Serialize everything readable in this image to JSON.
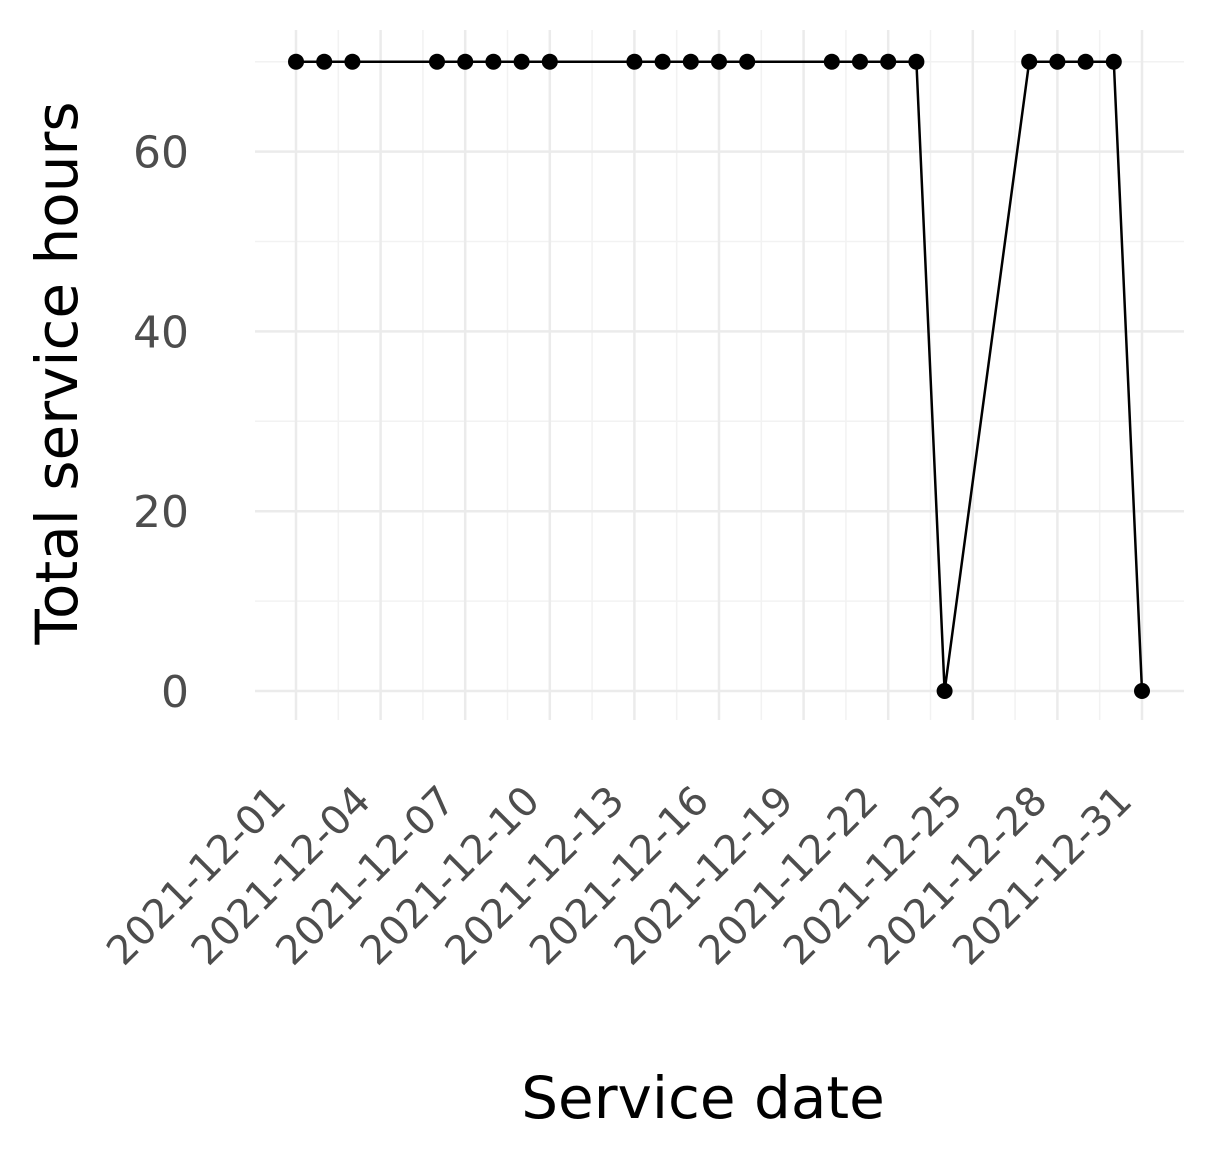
{
  "chart_data": {
    "type": "line",
    "title": "",
    "xlabel": "Service date",
    "ylabel": "Total service hours",
    "x_range": [
      "2021-11-30",
      "2021-12-31"
    ],
    "ylim": [
      0,
      70
    ],
    "y_ticks": [
      0,
      20,
      40,
      60
    ],
    "x_ticks": [
      "2021-12-01",
      "2021-12-04",
      "2021-12-07",
      "2021-12-10",
      "2021-12-13",
      "2021-12-16",
      "2021-12-19",
      "2021-12-22",
      "2021-12-25",
      "2021-12-28",
      "2021-12-31"
    ],
    "grid": true,
    "legend": "none",
    "series": [
      {
        "color": "#000000",
        "points": [
          {
            "x": "2021-12-01",
            "y": 70
          },
          {
            "x": "2021-12-02",
            "y": 70
          },
          {
            "x": "2021-12-03",
            "y": 70
          },
          {
            "x": "2021-12-06",
            "y": 70
          },
          {
            "x": "2021-12-07",
            "y": 70
          },
          {
            "x": "2021-12-08",
            "y": 70
          },
          {
            "x": "2021-12-09",
            "y": 70
          },
          {
            "x": "2021-12-10",
            "y": 70
          },
          {
            "x": "2021-12-13",
            "y": 70
          },
          {
            "x": "2021-12-14",
            "y": 70
          },
          {
            "x": "2021-12-15",
            "y": 70
          },
          {
            "x": "2021-12-16",
            "y": 70
          },
          {
            "x": "2021-12-17",
            "y": 70
          },
          {
            "x": "2021-12-20",
            "y": 70
          },
          {
            "x": "2021-12-21",
            "y": 70
          },
          {
            "x": "2021-12-22",
            "y": 70
          },
          {
            "x": "2021-12-23",
            "y": 70
          },
          {
            "x": "2021-12-24",
            "y": 0
          },
          {
            "x": "2021-12-27",
            "y": 70
          },
          {
            "x": "2021-12-28",
            "y": 70
          },
          {
            "x": "2021-12-29",
            "y": 70
          },
          {
            "x": "2021-12-30",
            "y": 70
          },
          {
            "x": "2021-12-31",
            "y": 0
          }
        ]
      }
    ]
  }
}
